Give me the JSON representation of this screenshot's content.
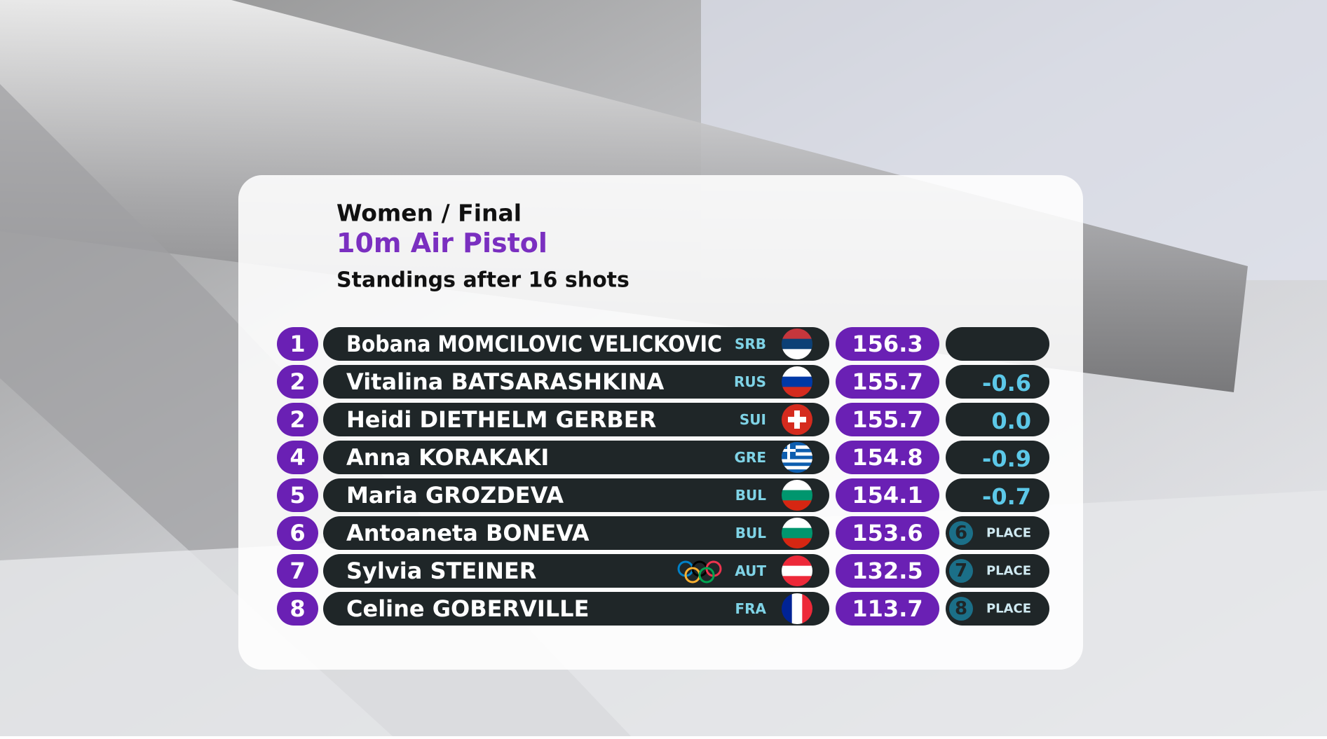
{
  "header": {
    "event": "Women / Final",
    "discipline": "10m Air Pistol",
    "status": "Standings after 16 shots"
  },
  "table": {
    "rows": [
      {
        "rank": "1",
        "name": "Bobana MOMCILOVIC VELICKOVIC",
        "noc": "SRB",
        "score": "156.3"
      },
      {
        "rank": "2",
        "name": "Vitalina BATSARASHKINA",
        "noc": "RUS",
        "score": "155.7",
        "diff": "-0.6"
      },
      {
        "rank": "2",
        "name": "Heidi DIETHELM GERBER",
        "noc": "SUI",
        "score": "155.7",
        "diff": "0.0"
      },
      {
        "rank": "4",
        "name": "Anna KORAKAKI",
        "noc": "GRE",
        "score": "154.8",
        "diff": "-0.9"
      },
      {
        "rank": "5",
        "name": "Maria GROZDEVA",
        "noc": "BUL",
        "score": "154.1",
        "diff": "-0.7"
      },
      {
        "rank": "6",
        "name": "Antoaneta BONEVA",
        "noc": "BUL",
        "score": "153.6",
        "place": {
          "rank": "6",
          "label": "PLACE"
        }
      },
      {
        "rank": "7",
        "name": "Sylvia STEINER",
        "noc": "AUT",
        "score": "132.5",
        "place": {
          "rank": "7",
          "label": "PLACE"
        }
      },
      {
        "rank": "8",
        "name": "Celine GOBERVILLE",
        "noc": "FRA",
        "score": "113.7",
        "place": {
          "rank": "8",
          "label": "PLACE"
        }
      }
    ]
  }
}
